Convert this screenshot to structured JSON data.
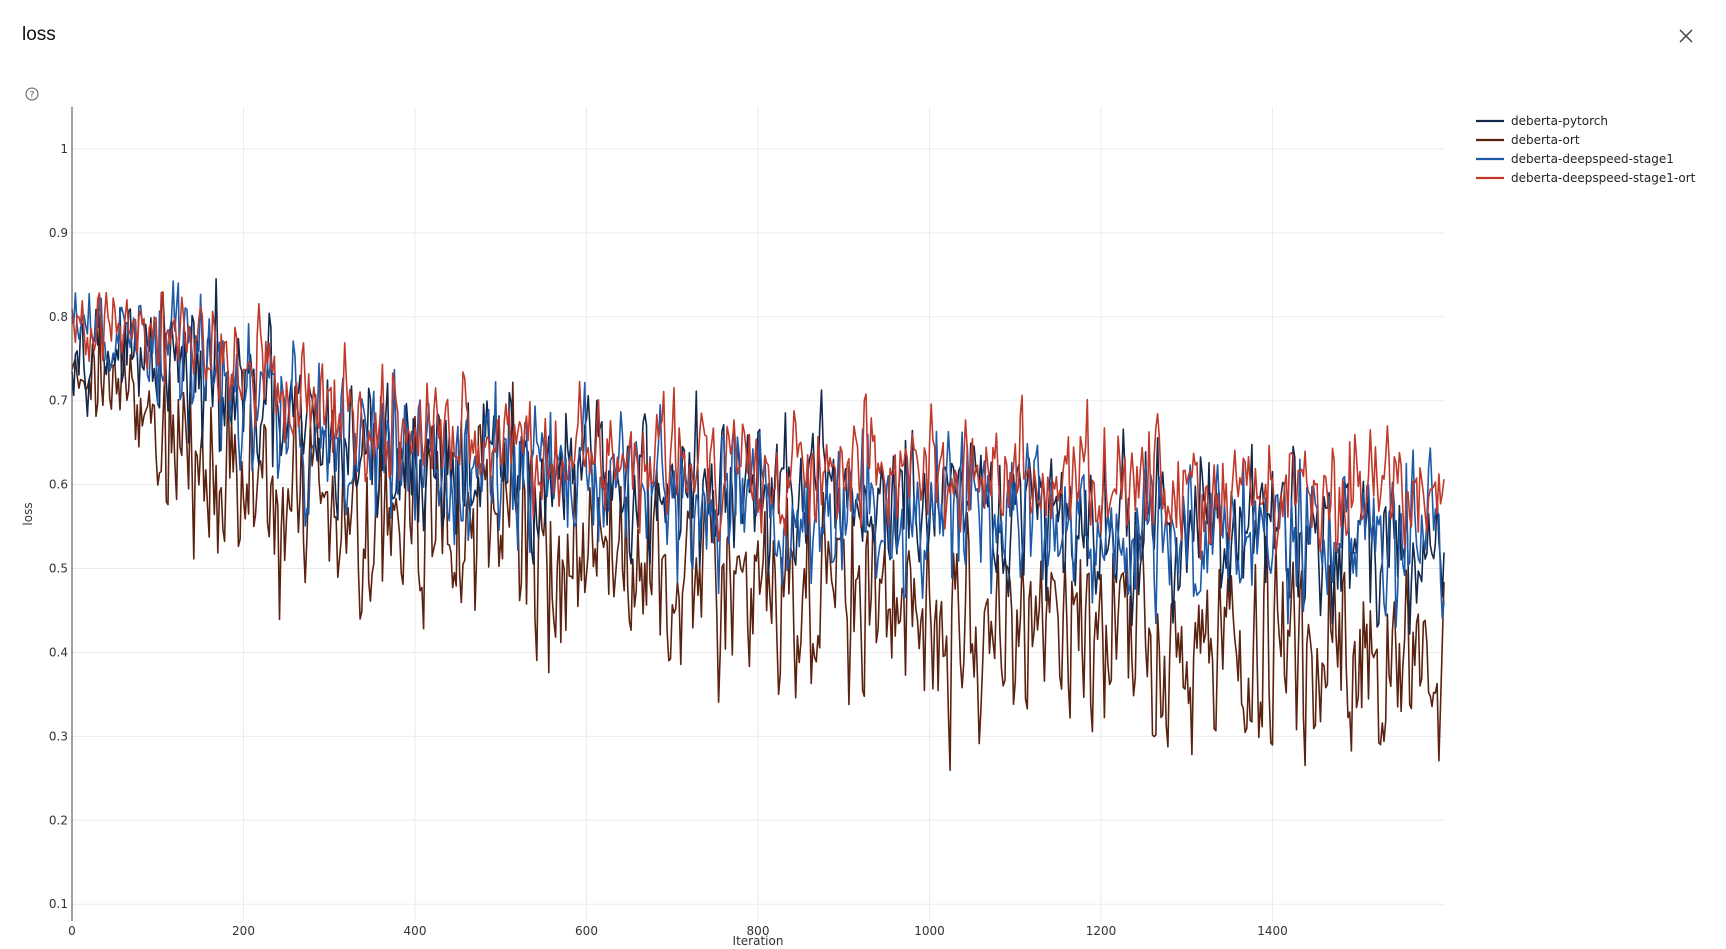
{
  "header": {
    "title": "loss",
    "close_icon": "close-icon",
    "help_icon": "help-circle-icon"
  },
  "chart_data": {
    "type": "line",
    "title": "loss",
    "xlabel": "Iteration",
    "ylabel": "loss",
    "xlim": [
      0,
      1600
    ],
    "ylim": [
      0.08,
      1.05
    ],
    "xticks": [
      0,
      200,
      400,
      600,
      800,
      1000,
      1200,
      1400
    ],
    "yticks": [
      0.1,
      0.2,
      0.3,
      0.4,
      0.5,
      0.6,
      0.7,
      0.8,
      0.9,
      1
    ],
    "grid": true,
    "legend_position": "top-right",
    "series": [
      {
        "name": "deberta-pytorch",
        "color": "#14284b",
        "x": [
          0,
          50,
          100,
          150,
          200,
          250,
          300,
          350,
          400,
          450,
          500,
          550,
          600,
          650,
          700,
          750,
          800,
          850,
          900,
          950,
          1000,
          1050,
          1100,
          1150,
          1200,
          1250,
          1300,
          1350,
          1400,
          1450,
          1500,
          1550,
          1600
        ],
        "y": [
          0.78,
          0.76,
          0.74,
          0.72,
          0.7,
          0.67,
          0.65,
          0.64,
          0.63,
          0.63,
          0.62,
          0.61,
          0.61,
          0.6,
          0.6,
          0.59,
          0.59,
          0.58,
          0.58,
          0.57,
          0.57,
          0.57,
          0.56,
          0.56,
          0.56,
          0.55,
          0.55,
          0.55,
          0.54,
          0.54,
          0.54,
          0.53,
          0.53
        ]
      },
      {
        "name": "deberta-ort",
        "color": "#5b2210",
        "x": [
          0,
          50,
          100,
          150,
          200,
          250,
          300,
          350,
          400,
          450,
          500,
          550,
          600,
          650,
          700,
          750,
          800,
          850,
          900,
          950,
          1000,
          1050,
          1100,
          1150,
          1200,
          1250,
          1300,
          1350,
          1400,
          1450,
          1500,
          1550,
          1600
        ],
        "y": [
          0.76,
          0.72,
          0.67,
          0.62,
          0.6,
          0.59,
          0.58,
          0.57,
          0.56,
          0.55,
          0.54,
          0.53,
          0.52,
          0.51,
          0.5,
          0.49,
          0.48,
          0.47,
          0.46,
          0.45,
          0.44,
          0.43,
          0.43,
          0.42,
          0.41,
          0.41,
          0.4,
          0.4,
          0.39,
          0.39,
          0.38,
          0.38,
          0.38
        ]
      },
      {
        "name": "deberta-deepspeed-stage1",
        "color": "#1e5aa8",
        "x": [
          0,
          50,
          100,
          150,
          200,
          250,
          300,
          350,
          400,
          450,
          500,
          550,
          600,
          650,
          700,
          750,
          800,
          850,
          900,
          950,
          1000,
          1050,
          1100,
          1150,
          1200,
          1250,
          1300,
          1350,
          1400,
          1450,
          1500,
          1550,
          1600
        ],
        "y": [
          0.79,
          0.77,
          0.76,
          0.75,
          0.72,
          0.68,
          0.66,
          0.64,
          0.63,
          0.62,
          0.62,
          0.61,
          0.61,
          0.6,
          0.6,
          0.59,
          0.59,
          0.58,
          0.58,
          0.57,
          0.57,
          0.57,
          0.56,
          0.56,
          0.56,
          0.55,
          0.55,
          0.55,
          0.54,
          0.54,
          0.54,
          0.54,
          0.53
        ]
      },
      {
        "name": "deberta-deepspeed-stage1-ort",
        "color": "#c0392b",
        "x": [
          0,
          50,
          100,
          150,
          200,
          250,
          300,
          350,
          400,
          450,
          500,
          550,
          600,
          650,
          700,
          750,
          800,
          850,
          900,
          950,
          1000,
          1050,
          1100,
          1150,
          1200,
          1250,
          1300,
          1350,
          1400,
          1450,
          1500,
          1550,
          1600
        ],
        "y": [
          0.78,
          0.78,
          0.77,
          0.77,
          0.74,
          0.7,
          0.68,
          0.67,
          0.66,
          0.65,
          0.65,
          0.64,
          0.64,
          0.63,
          0.63,
          0.63,
          0.62,
          0.62,
          0.62,
          0.61,
          0.61,
          0.61,
          0.61,
          0.6,
          0.6,
          0.6,
          0.6,
          0.6,
          0.59,
          0.59,
          0.59,
          0.59,
          0.59
        ]
      }
    ]
  }
}
